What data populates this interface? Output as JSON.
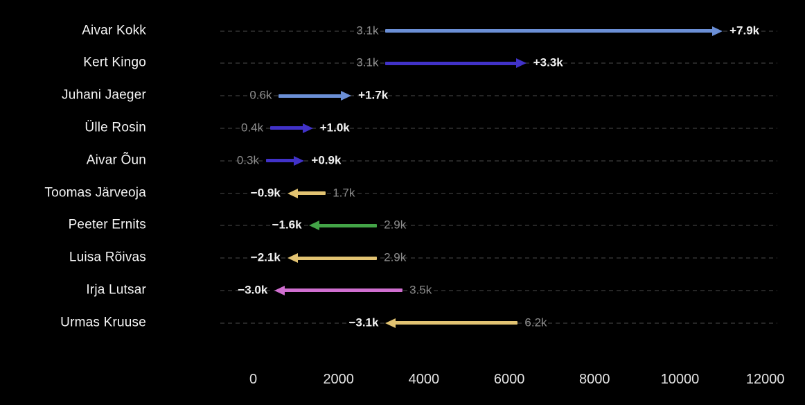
{
  "chart_data": {
    "type": "bar",
    "variant": "horizontal-arrow-change",
    "title": "",
    "xlabel": "",
    "ylabel": "",
    "background": "#000000",
    "grid": true,
    "xlim": [
      0,
      12000
    ],
    "categories": [
      "Aivar Kokk",
      "Kert Kingo",
      "Juhani Jaeger",
      "Ülle Rosin",
      "Aivar Õun",
      "Toomas Järveoja",
      "Peeter Ernits",
      "Luisa Rõivas",
      "Irja Lutsar",
      "Urmas Kruuse"
    ],
    "series": [
      {
        "name": "start",
        "values": [
          3100,
          3100,
          600,
          400,
          300,
          1700,
          2900,
          2900,
          3500,
          6200
        ]
      },
      {
        "name": "end",
        "values": [
          11000,
          6400,
          2300,
          1400,
          1200,
          800,
          1300,
          800,
          500,
          3100
        ]
      },
      {
        "name": "change",
        "values": [
          7900,
          3300,
          1700,
          1000,
          900,
          -900,
          -1600,
          -2100,
          -3000,
          -3100
        ]
      }
    ],
    "rows": [
      {
        "name": "Aivar Kokk",
        "start": 3100,
        "end": 11000,
        "start_label": "3.1k",
        "change_label": "+7.9k",
        "direction": "right",
        "color": "#6b8fd6"
      },
      {
        "name": "Kert Kingo",
        "start": 3100,
        "end": 6400,
        "start_label": "3.1k",
        "change_label": "+3.3k",
        "direction": "right",
        "color": "#4132c8"
      },
      {
        "name": "Juhani Jaeger",
        "start": 600,
        "end": 2300,
        "start_label": "0.6k",
        "change_label": "+1.7k",
        "direction": "right",
        "color": "#6b8fd6"
      },
      {
        "name": "Ülle Rosin",
        "start": 400,
        "end": 1400,
        "start_label": "0.4k",
        "change_label": "+1.0k",
        "direction": "right",
        "color": "#4132c8"
      },
      {
        "name": "Aivar Õun",
        "start": 300,
        "end": 1200,
        "start_label": "0.3k",
        "change_label": "+0.9k",
        "direction": "right",
        "color": "#4132c8"
      },
      {
        "name": "Toomas Järveoja",
        "start": 1700,
        "end": 800,
        "start_label": "1.7k",
        "change_label": "−0.9k",
        "direction": "left",
        "color": "#e2c372"
      },
      {
        "name": "Peeter Ernits",
        "start": 2900,
        "end": 1300,
        "start_label": "2.9k",
        "change_label": "−1.6k",
        "direction": "left",
        "color": "#43a447"
      },
      {
        "name": "Luisa Rõivas",
        "start": 2900,
        "end": 800,
        "start_label": "2.9k",
        "change_label": "−2.1k",
        "direction": "left",
        "color": "#e2c372"
      },
      {
        "name": "Irja Lutsar",
        "start": 3500,
        "end": 500,
        "start_label": "3.5k",
        "change_label": "−3.0k",
        "direction": "left",
        "color": "#d06fd0"
      },
      {
        "name": "Urmas Kruuse",
        "start": 6200,
        "end": 3100,
        "start_label": "6.2k",
        "change_label": "−3.1k",
        "direction": "left",
        "color": "#e2c372"
      }
    ],
    "x_axis": {
      "ticks": [
        0,
        2000,
        4000,
        6000,
        8000,
        10000,
        12000
      ],
      "tick_labels": [
        "0",
        "2000",
        "4000",
        "6000",
        "8000",
        "10000",
        "12000"
      ]
    },
    "colors": {
      "arrow_blue": "#6b8fd6",
      "arrow_indigo": "#4132c8",
      "arrow_tan": "#e2c372",
      "arrow_green": "#43a447",
      "arrow_orchid": "#d06fd0",
      "name_label": "#f5f5f5",
      "start_label": "#8d8d8d",
      "delta_label": "#f2f2f2",
      "axis_label": "#e4e4e4",
      "gridline": "#262626",
      "background": "#000000"
    }
  }
}
